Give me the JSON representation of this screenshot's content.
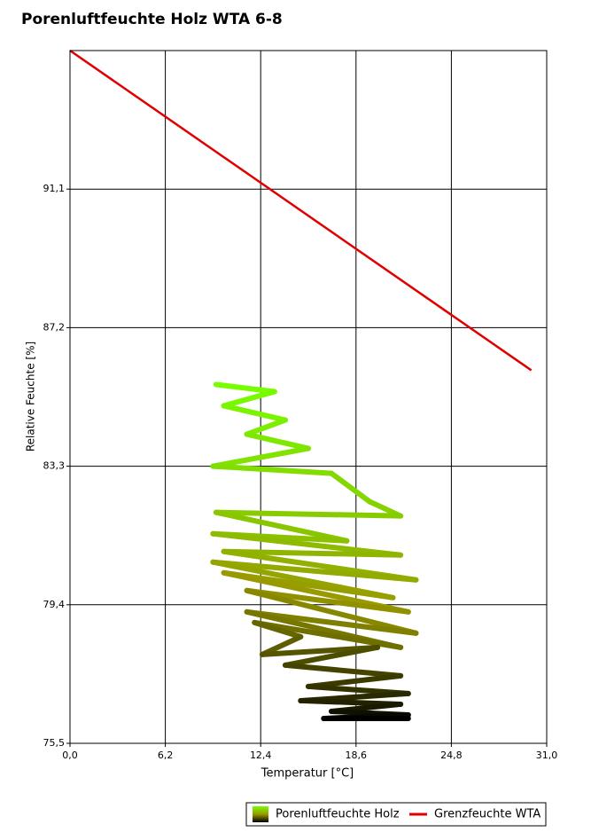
{
  "chart_data": {
    "type": "line",
    "title": "Porenluftfeuchte Holz WTA 6-8",
    "x_label": "Temperatur [°C]",
    "y_label": "Relative Feuchte [%]",
    "xlim": [
      0,
      31
    ],
    "ylim": [
      75.5,
      95.0
    ],
    "xticks": [
      {
        "value": 0,
        "label": "0,0"
      },
      {
        "value": 6.2,
        "label": "6,2"
      },
      {
        "value": 12.4,
        "label": "12,4"
      },
      {
        "value": 18.6,
        "label": "18,6"
      },
      {
        "value": 24.8,
        "label": "24,8"
      },
      {
        "value": 31,
        "label": "31,0"
      }
    ],
    "yticks": [
      {
        "value": 75.5,
        "label": "75,5"
      },
      {
        "value": 79.4,
        "label": "79,4"
      },
      {
        "value": 83.3,
        "label": "83,3"
      },
      {
        "value": 87.2,
        "label": "87,2"
      },
      {
        "value": 91.1,
        "label": "91,1"
      }
    ],
    "grid": true,
    "series": [
      {
        "name": "Porenluftfeuchte Holz",
        "color": [
          "#77ff00",
          "#999900",
          "#000000"
        ],
        "x": [
          9.5,
          13.3,
          10.0,
          14.0,
          11.5,
          15.5,
          9.3,
          17.0,
          19.5,
          21.5,
          9.5,
          18.0,
          9.3,
          21.5,
          10.0,
          22.5,
          9.3,
          21.0,
          10.0,
          22.0,
          11.5,
          22.5,
          11.5,
          21.5,
          12.0,
          15.0,
          12.5,
          20.0,
          14.0,
          21.5,
          15.5,
          22.0,
          15.0,
          21.5,
          17.0,
          22.0,
          16.5,
          22.0
        ],
        "y": [
          85.6,
          85.4,
          85.0,
          84.6,
          84.2,
          83.8,
          83.3,
          83.1,
          82.3,
          81.9,
          82.0,
          81.2,
          81.4,
          80.8,
          80.9,
          80.1,
          80.6,
          79.6,
          80.3,
          79.2,
          79.8,
          78.6,
          79.2,
          78.2,
          78.9,
          78.5,
          78.0,
          78.2,
          77.7,
          77.4,
          77.1,
          76.9,
          76.7,
          76.6,
          76.4,
          76.3,
          76.2,
          76.2
        ]
      },
      {
        "name": "Grenzfeuchte WTA",
        "color": "#e00000",
        "x": [
          0,
          30
        ],
        "y": [
          95.0,
          86.0
        ]
      }
    ]
  }
}
